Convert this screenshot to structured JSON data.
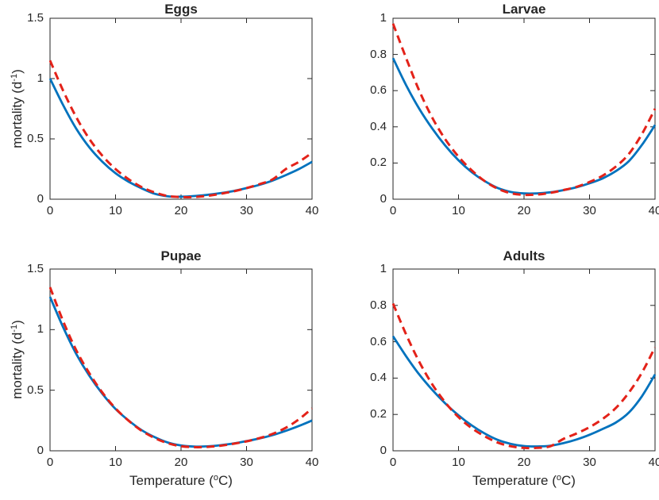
{
  "figure": {
    "colors": {
      "blue": "#0072bd",
      "red": "#e32219",
      "axis": "#262626",
      "background": "#ffffff"
    }
  },
  "chart_data": {
    "type": "line",
    "xlabel": {
      "pre": "Temperature (",
      "sup": "o",
      "post": "C)"
    },
    "ylabel": {
      "pre": "mortality (d",
      "sup": "-1",
      "post": ")"
    },
    "legend": "none",
    "grid": false,
    "panels": [
      {
        "id": "eggs",
        "title": "Eggs",
        "xlim": [
          0,
          40
        ],
        "ylim": [
          0,
          1.5
        ],
        "xticks": [
          0,
          10,
          20,
          30,
          40
        ],
        "xtick_labels": [
          "0",
          "10",
          "20",
          "30",
          "40"
        ],
        "yticks": [
          0,
          0.5,
          1,
          1.5
        ],
        "ytick_labels": [
          "0",
          "0.5",
          "1",
          "1.5"
        ],
        "x": [
          0,
          2,
          4,
          6,
          8,
          10,
          12,
          14,
          16,
          18,
          20,
          22,
          24,
          26,
          28,
          30,
          32,
          34,
          36,
          38,
          40
        ],
        "series": [
          {
            "id": "blue-solid",
            "line_style": "solid",
            "values": [
              1.0,
              0.78,
              0.585,
              0.43,
              0.31,
              0.215,
              0.145,
              0.09,
              0.045,
              0.024,
              0.021,
              0.026,
              0.036,
              0.05,
              0.068,
              0.092,
              0.12,
              0.155,
              0.2,
              0.25,
              0.31
            ]
          },
          {
            "id": "red-dashed",
            "line_style": "dashed",
            "values": [
              1.15,
              0.9,
              0.68,
              0.5,
              0.36,
              0.25,
              0.165,
              0.1,
              0.055,
              0.026,
              0.018,
              0.018,
              0.028,
              0.045,
              0.065,
              0.092,
              0.125,
              0.165,
              0.25,
              0.31,
              0.385
            ]
          }
        ]
      },
      {
        "id": "larvae",
        "title": "Larvae",
        "xlim": [
          0,
          40
        ],
        "ylim": [
          0,
          1
        ],
        "xticks": [
          0,
          10,
          20,
          30,
          40
        ],
        "xtick_labels": [
          "0",
          "10",
          "20",
          "30",
          "40"
        ],
        "yticks": [
          0,
          0.2,
          0.4,
          0.6,
          0.8,
          1
        ],
        "ytick_labels": [
          "0",
          "0.2",
          "0.4",
          "0.6",
          "0.8",
          "1"
        ],
        "x": [
          0,
          2,
          4,
          6,
          8,
          10,
          12,
          14,
          16,
          18,
          20,
          22,
          24,
          26,
          28,
          30,
          32,
          34,
          36,
          38,
          40
        ],
        "series": [
          {
            "id": "blue-solid",
            "line_style": "solid",
            "values": [
              0.78,
              0.63,
              0.5,
              0.39,
              0.295,
              0.215,
              0.15,
              0.1,
              0.062,
              0.04,
              0.032,
              0.032,
              0.038,
              0.05,
              0.066,
              0.088,
              0.115,
              0.155,
              0.21,
              0.3,
              0.41
            ]
          },
          {
            "id": "red-dashed",
            "line_style": "dashed",
            "values": [
              0.97,
              0.78,
              0.6,
              0.45,
              0.33,
              0.235,
              0.16,
              0.1,
              0.058,
              0.033,
              0.024,
              0.026,
              0.035,
              0.05,
              0.068,
              0.095,
              0.13,
              0.18,
              0.25,
              0.36,
              0.5
            ]
          }
        ]
      },
      {
        "id": "pupae",
        "title": "Pupae",
        "xlim": [
          0,
          40
        ],
        "ylim": [
          0,
          1.5
        ],
        "xticks": [
          0,
          10,
          20,
          30,
          40
        ],
        "xtick_labels": [
          "0",
          "10",
          "20",
          "30",
          "40"
        ],
        "yticks": [
          0,
          0.5,
          1,
          1.5
        ],
        "ytick_labels": [
          "0",
          "0.5",
          "1",
          "1.5"
        ],
        "x": [
          0,
          2,
          4,
          6,
          8,
          10,
          12,
          14,
          16,
          18,
          20,
          22,
          24,
          26,
          28,
          30,
          32,
          34,
          36,
          38,
          40
        ],
        "series": [
          {
            "id": "blue-solid",
            "line_style": "solid",
            "values": [
              1.27,
              1.02,
              0.8,
              0.62,
              0.47,
              0.345,
              0.25,
              0.17,
              0.112,
              0.068,
              0.044,
              0.035,
              0.037,
              0.046,
              0.06,
              0.08,
              0.102,
              0.13,
              0.165,
              0.205,
              0.25
            ]
          },
          {
            "id": "red-dashed",
            "line_style": "dashed",
            "values": [
              1.35,
              1.07,
              0.83,
              0.64,
              0.48,
              0.35,
              0.248,
              0.165,
              0.105,
              0.062,
              0.038,
              0.03,
              0.032,
              0.042,
              0.058,
              0.078,
              0.105,
              0.14,
              0.19,
              0.26,
              0.35
            ]
          }
        ]
      },
      {
        "id": "adults",
        "title": "Adults",
        "xlim": [
          0,
          40
        ],
        "ylim": [
          0,
          1
        ],
        "xticks": [
          0,
          10,
          20,
          30,
          40
        ],
        "xtick_labels": [
          "0",
          "10",
          "20",
          "30",
          "40"
        ],
        "yticks": [
          0,
          0.2,
          0.4,
          0.6,
          0.8,
          1
        ],
        "ytick_labels": [
          "0",
          "0.2",
          "0.4",
          "0.6",
          "0.8",
          "1"
        ],
        "x": [
          0,
          2,
          4,
          6,
          8,
          10,
          12,
          14,
          16,
          18,
          20,
          22,
          24,
          26,
          28,
          30,
          32,
          34,
          36,
          38,
          40
        ],
        "series": [
          {
            "id": "blue-solid",
            "line_style": "solid",
            "values": [
              0.63,
              0.52,
              0.42,
              0.335,
              0.26,
              0.195,
              0.14,
              0.095,
              0.06,
              0.038,
              0.026,
              0.024,
              0.028,
              0.042,
              0.062,
              0.088,
              0.12,
              0.155,
              0.21,
              0.3,
              0.42
            ]
          },
          {
            "id": "red-dashed",
            "line_style": "dashed",
            "values": [
              0.81,
              0.64,
              0.49,
              0.365,
              0.265,
              0.185,
              0.125,
              0.08,
              0.045,
              0.025,
              0.016,
              0.016,
              0.025,
              0.065,
              0.095,
              0.13,
              0.175,
              0.235,
              0.32,
              0.43,
              0.57
            ]
          }
        ]
      }
    ]
  }
}
